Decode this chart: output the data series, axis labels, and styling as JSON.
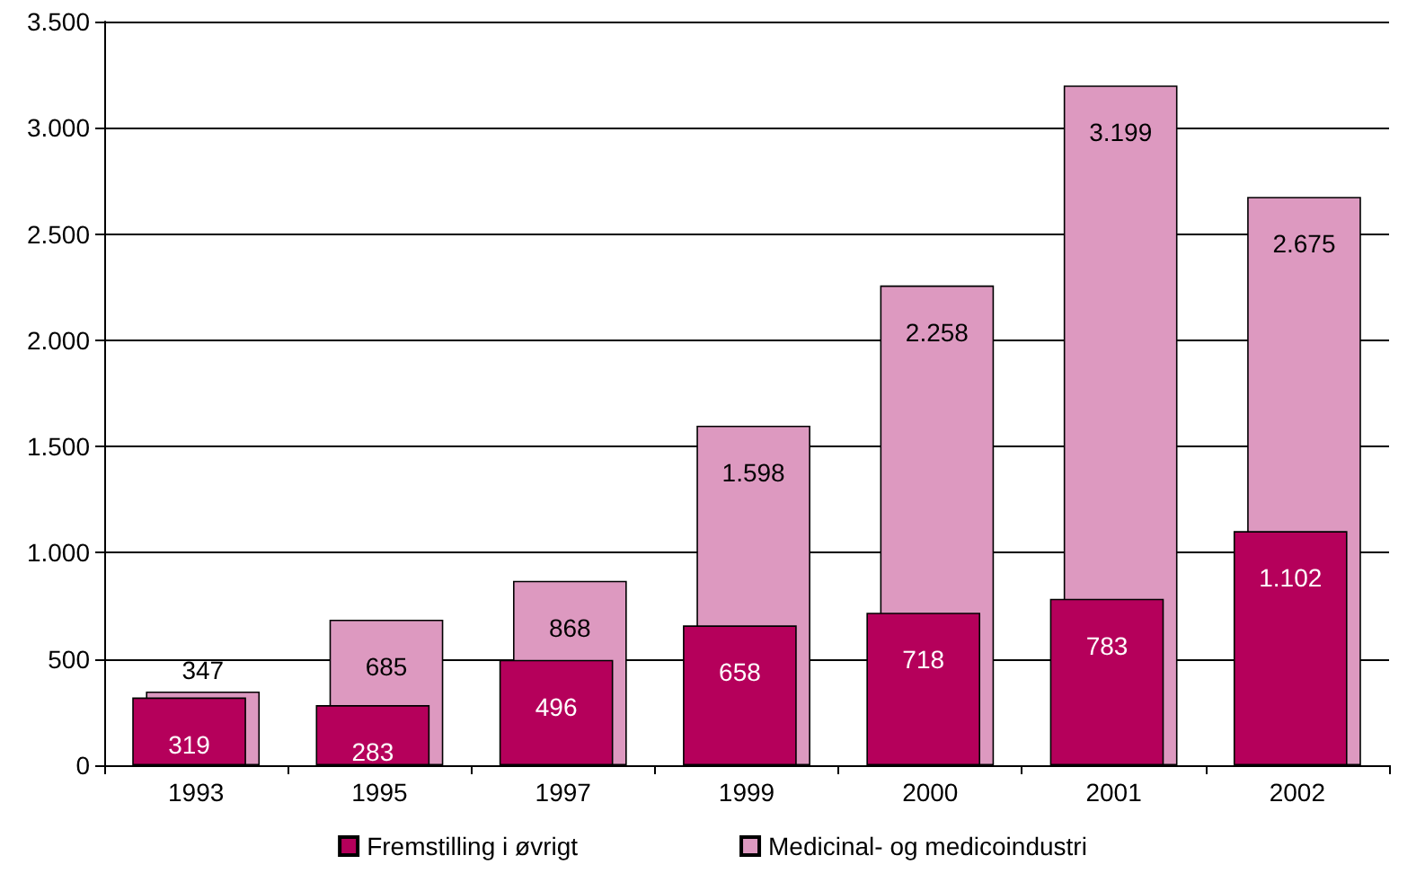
{
  "chart_data": {
    "type": "bar",
    "categories": [
      "1993",
      "1995",
      "1997",
      "1999",
      "2000",
      "2001",
      "2002"
    ],
    "series": [
      {
        "name": "Fremstilling i øvrigt",
        "color": "#b5005b",
        "values": [
          319,
          283,
          496,
          658,
          718,
          783,
          1102
        ],
        "value_labels": [
          "319",
          "283",
          "496",
          "658",
          "718",
          "783",
          "1.102"
        ]
      },
      {
        "name": "Medicinal- og medicoindustri",
        "color": "#dd99c0",
        "values": [
          347,
          685,
          868,
          1598,
          2258,
          3199,
          2675
        ],
        "value_labels": [
          "347",
          "685",
          "868",
          "1.598",
          "2.258",
          "3.199",
          "2.675"
        ]
      }
    ],
    "ylim": [
      0,
      3500
    ],
    "yticks": [
      0,
      500,
      {
        "value": 1000,
        "label": "1.000"
      },
      {
        "value": 1500,
        "label": "1.500"
      },
      {
        "value": 2000,
        "label": "2.000"
      },
      {
        "value": 2500,
        "label": "2.500"
      },
      {
        "value": 3000,
        "label": "3.000"
      },
      {
        "value": 3500,
        "label": "3.500"
      }
    ],
    "grid": "y",
    "legend": "bottom"
  }
}
